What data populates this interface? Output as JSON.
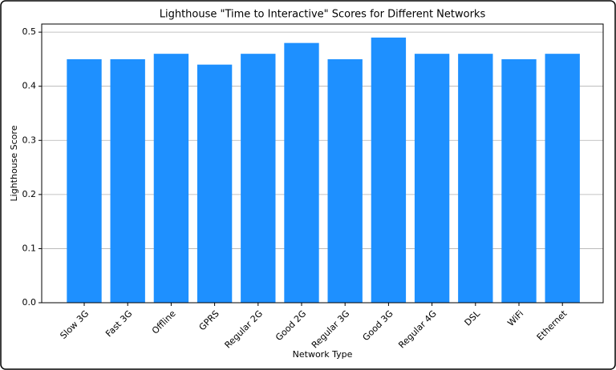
{
  "chart_data": {
    "type": "bar",
    "title": "Lighthouse \"Time to Interactive\" Scores for Different Networks",
    "x_label": "Network Type",
    "y_label": "Lighthouse Score",
    "categories": [
      "Slow 3G",
      "Fast 3G",
      "Offline",
      "GPRS",
      "Regular 2G",
      "Good 2G",
      "Regular 3G",
      "Good 3G",
      "Regular 4G",
      "DSL",
      "WiFi",
      "Ethernet"
    ],
    "values": [
      0.45,
      0.45,
      0.46,
      0.44,
      0.46,
      0.48,
      0.45,
      0.49,
      0.46,
      0.46,
      0.45,
      0.46
    ],
    "color": "#1e90ff",
    "ylim": [
      0,
      0.515
    ],
    "yticks": [
      {
        "value": 0,
        "label": "0.0"
      },
      0.1,
      0.2,
      0.3,
      0.4,
      0.5
    ],
    "grid": true
  }
}
